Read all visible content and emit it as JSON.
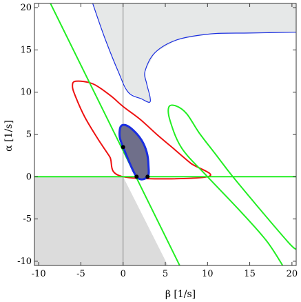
{
  "chart_data": {
    "type": "line",
    "title": "",
    "xlabel": "β [1/s]",
    "ylabel": "α [1/s]",
    "xlim": [
      -10.5,
      20.5
    ],
    "ylim": [
      -10.5,
      20.5
    ],
    "x_ticks": [
      -10,
      -5,
      0,
      5,
      10,
      15,
      20
    ],
    "y_ticks": [
      -10,
      -5,
      0,
      5,
      10,
      15,
      20
    ],
    "grid": false,
    "colors": {
      "green": "#22ee22",
      "red": "#ee1111",
      "blue": "#1a2ee0",
      "shaded_region": "#e6e8e8",
      "filled_blob": "#6f6f8a",
      "reference_axes": "#888888"
    },
    "green_lines": [
      {
        "points": [
          [
            -10.5,
            0
          ],
          [
            20.5,
            0
          ]
        ]
      },
      {
        "points": [
          [
            -8.6,
            20.5
          ],
          [
            6.7,
            -10.5
          ]
        ]
      }
    ],
    "green_parabola": {
      "points": [
        [
          20.5,
          -8.6
        ],
        [
          19.6,
          -7.8
        ],
        [
          16,
          -3.6
        ],
        [
          13,
          0
        ],
        [
          11,
          2.6
        ],
        [
          9,
          5.2
        ],
        [
          7.5,
          7.5
        ],
        [
          6.2,
          8.4
        ],
        [
          5.4,
          8.2
        ],
        [
          5.6,
          6.5
        ],
        [
          7,
          3.3
        ],
        [
          10,
          0
        ],
        [
          14,
          -4.2
        ],
        [
          17,
          -7.6
        ],
        [
          18.9,
          -10.5
        ]
      ]
    },
    "red_curve": {
      "points": [
        [
          10,
          0
        ],
        [
          8,
          1.6
        ],
        [
          6,
          3.3
        ],
        [
          4,
          5
        ],
        [
          2,
          6.8
        ],
        [
          0,
          8.3
        ],
        [
          -1.5,
          9.6
        ],
        [
          -3.6,
          11
        ],
        [
          -5.6,
          11.3
        ],
        [
          -6,
          10.7
        ],
        [
          -5.6,
          9.4
        ],
        [
          -4.5,
          7
        ],
        [
          -3,
          4.5
        ],
        [
          -1.6,
          2.4
        ],
        [
          0,
          0
        ]
      ]
    },
    "blue_boundary": {
      "points": [
        [
          -3.6,
          20.5
        ],
        [
          -2.2,
          16.5
        ],
        [
          -0.6,
          12.5
        ],
        [
          0.6,
          10
        ],
        [
          2.2,
          9.2
        ],
        [
          3.1,
          8.8
        ],
        [
          3.2,
          9.4
        ],
        [
          2.8,
          11
        ],
        [
          2.6,
          12.5
        ],
        [
          3.8,
          14.7
        ],
        [
          6.4,
          16.2
        ],
        [
          10.4,
          16.9
        ],
        [
          15,
          17
        ],
        [
          20.5,
          17.1
        ]
      ]
    },
    "gray_region_bottom_left": {
      "points": [
        [
          -10.5,
          0
        ],
        [
          0,
          0
        ],
        [
          5.3,
          -10.5
        ],
        [
          -10.5,
          -10.5
        ]
      ]
    },
    "blue_filled_blob": {
      "points": [
        [
          0,
          3.5
        ],
        [
          -0.4,
          4.7
        ],
        [
          -0.3,
          5.9
        ],
        [
          0.3,
          6.1
        ],
        [
          1.2,
          5.5
        ],
        [
          2.2,
          4.3
        ],
        [
          2.8,
          2.9
        ],
        [
          3,
          1.4
        ],
        [
          2.9,
          0
        ],
        [
          1.6,
          0
        ],
        [
          0,
          3.5
        ]
      ]
    },
    "black_points": [
      [
        0,
        3.5
      ],
      [
        1.6,
        0
      ],
      [
        2.9,
        0
      ]
    ]
  }
}
